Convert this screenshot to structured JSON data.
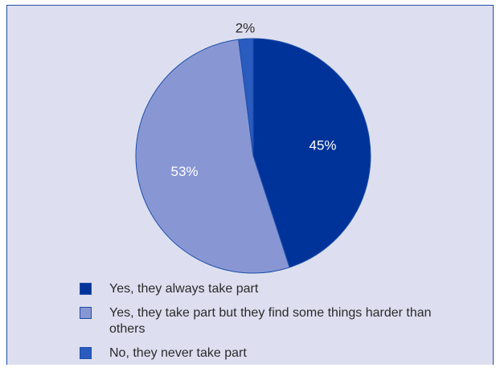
{
  "colors": {
    "panel_background": "#dddff0",
    "border": "#1e4fa8",
    "text": "#2a2a2a",
    "slice_text": "#ffffff"
  },
  "chart_data": {
    "type": "pie",
    "title": "",
    "slices": [
      {
        "label": "Yes, they always take part",
        "value": 45,
        "display": "45%",
        "color": "#003399"
      },
      {
        "label": "Yes, they take part but they find some things harder than others",
        "value": 53,
        "display": "53%",
        "color": "#8897d4"
      },
      {
        "label": "No, they never take part",
        "value": 2,
        "display": "2%",
        "color": "#2a5bbf"
      }
    ],
    "start_angle": "12 o'clock",
    "direction": "clockwise",
    "legend_position": "bottom"
  },
  "legend": {
    "items": [
      {
        "label": "Yes, they always take part",
        "color": "#003399"
      },
      {
        "label": "Yes, they take part but they find some things harder than others",
        "color": "#8897d4"
      },
      {
        "label": "No, they never take part",
        "color": "#2a5bbf"
      }
    ]
  }
}
